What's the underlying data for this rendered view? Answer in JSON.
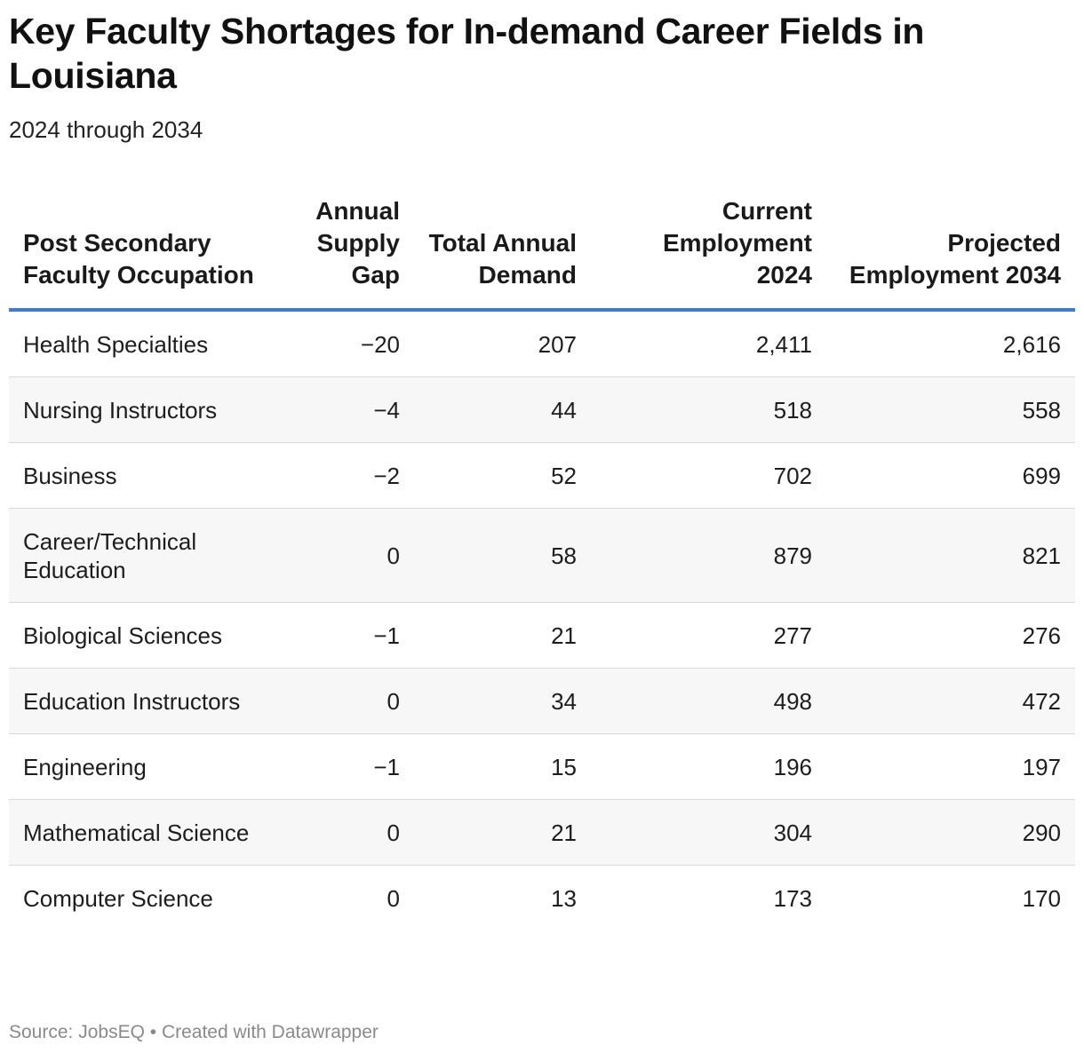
{
  "header": {
    "title": "Key Faculty Shortages for In-demand Career Fields in Louisiana",
    "subtitle": "2024 through 2034"
  },
  "footer": {
    "source_label": "Source: JobsEQ",
    "separator": "•",
    "credit": "Created with Datawrapper"
  },
  "chart_data": {
    "type": "table",
    "title": "Key Faculty Shortages for In-demand Career Fields in Louisiana",
    "subtitle": "2024 through 2034",
    "columns": [
      "Post Secondary Faculty Occupation",
      "Annual Supply Gap",
      "Total Annual Demand",
      "Current Employment 2024",
      "Projected Employment 2034"
    ],
    "rows": [
      [
        "Health Specialties",
        "−20",
        "207",
        "2,411",
        "2,616"
      ],
      [
        "Nursing Instructors",
        "−4",
        "44",
        "518",
        "558"
      ],
      [
        "Business",
        "−2",
        "52",
        "702",
        "699"
      ],
      [
        "Career/Technical Education",
        "0",
        "58",
        "879",
        "821"
      ],
      [
        "Biological Sciences",
        "−1",
        "21",
        "277",
        "276"
      ],
      [
        "Education Instructors",
        "0",
        "34",
        "498",
        "472"
      ],
      [
        "Engineering",
        "−1",
        "15",
        "196",
        "197"
      ],
      [
        "Mathematical Science",
        "0",
        "21",
        "304",
        "290"
      ],
      [
        "Computer Science",
        "0",
        "13",
        "173",
        "170"
      ]
    ],
    "source": "Source: JobsEQ • Created with Datawrapper",
    "colors": {
      "header_rule": "#3a7bd5",
      "stripe": "#f7f7f7",
      "row_divider": "#d9d9d9",
      "footer_text": "#8a8a8a"
    }
  }
}
